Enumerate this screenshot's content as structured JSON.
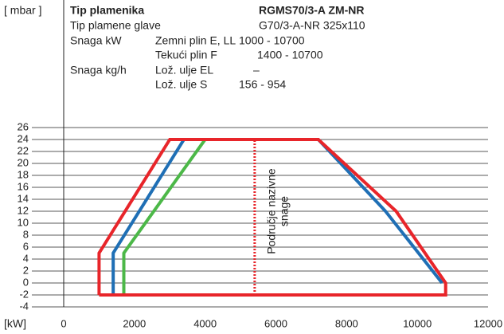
{
  "chart_data": {
    "type": "line",
    "y_label": "[ mbar ]",
    "x_label": "[kW]",
    "info": [
      {
        "label": "Tip plamenika",
        "value": "RGMS70/3-A ZM-NR"
      },
      {
        "label": "Tip plamene glave",
        "value": "G70/3-A-NR 325x110"
      },
      {
        "label": "Snaga kW",
        "fuel": "Zemni plin E, LL",
        "value": "1000 - 10700"
      },
      {
        "fuel": "Tekući plin F",
        "value": "1400 - 10700"
      },
      {
        "label": "Snaga kg/h",
        "fuel": "Lož. ulje EL",
        "value": "–"
      },
      {
        "fuel": "Lož. ulje S",
        "value": "156 - 954"
      }
    ],
    "annotation": [
      "Područje nazivne",
      "snage"
    ],
    "annotation_line": {
      "color": "#e8252a",
      "x": [
        5400,
        5400
      ],
      "values": [
        -2,
        24
      ]
    },
    "series": [
      {
        "color": "#1f6fb5",
        "x": [
          1400,
          1400,
          3400,
          7200,
          9100,
          10700
        ],
        "values": [
          -2,
          5,
          24,
          24,
          12,
          0
        ]
      },
      {
        "color": "#4cb848",
        "x": [
          1700,
          1700,
          4000
        ],
        "values": [
          -2,
          5,
          24
        ]
      },
      {
        "color": "#e8252a",
        "x": [
          1000,
          1000,
          3000,
          7200,
          9400,
          10800,
          10800,
          1000
        ],
        "values": [
          -2,
          5,
          24,
          24,
          12,
          0,
          -2,
          -2
        ]
      }
    ],
    "xlim": [
      0,
      12000
    ],
    "xticks": [
      0,
      2000,
      4000,
      6000,
      8000,
      10000,
      12000
    ],
    "ylim": [
      -4,
      26
    ],
    "yticks": [
      -4,
      -2,
      0,
      2,
      4,
      6,
      8,
      10,
      12,
      14,
      16,
      18,
      20,
      22,
      24,
      26
    ],
    "grid": true
  }
}
